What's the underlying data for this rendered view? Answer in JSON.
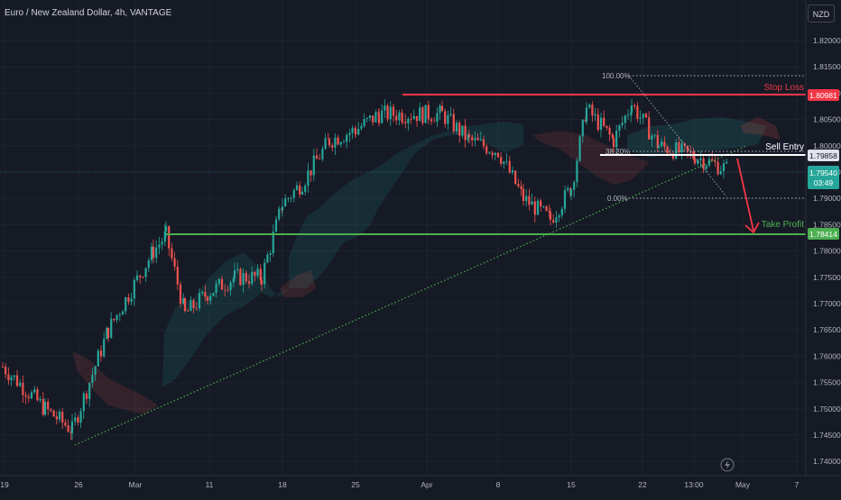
{
  "header": {
    "title": "Euro / New Zealand Dollar, 4h, VANTAGE",
    "currency": "NZD"
  },
  "price_axis": {
    "ticks": [
      "1.82000",
      "1.81500",
      "1.81000",
      "1.80500",
      "1.80000",
      "1.79500",
      "1.79000",
      "1.78500",
      "1.78000",
      "1.77500",
      "1.77000",
      "1.76500",
      "1.76000",
      "1.75500",
      "1.75000",
      "1.74500",
      "1.74000"
    ],
    "badges": {
      "stop_loss": "1.80981",
      "sell_entry": "1.79858",
      "current": "1.79540",
      "countdown": "03:49",
      "take_profit": "1.78414"
    }
  },
  "time_axis": {
    "ticks": [
      "19",
      "26",
      "Mar",
      "11",
      "18",
      "25",
      "Apr",
      "8",
      "15",
      "22",
      "13:00",
      "May",
      "7"
    ]
  },
  "annotations": {
    "stop_loss": "Stop Loss",
    "sell_entry": "Sell Entry",
    "take_profit": "Take Profit",
    "fib_100": "100.00%",
    "fib_38": "38.20%",
    "fib_0": "0.00%"
  },
  "colors": {
    "up": "#26a69a",
    "down": "#ef5350",
    "stop": "#f23645",
    "tp": "#4caf50",
    "entry": "#ffffff",
    "bg": "#161a25"
  },
  "chart_data": {
    "type": "candlestick",
    "ylim": [
      1.74,
      1.82
    ],
    "levels": {
      "stop_loss": 1.80981,
      "sell_entry": 1.79858,
      "take_profit": 1.78414,
      "current": 1.7954
    },
    "close_anchors": [
      [
        "Feb 19",
        1.758
      ],
      [
        "Feb 23",
        1.75
      ],
      [
        "Feb 27",
        1.746
      ],
      [
        "Mar 1",
        1.765
      ],
      [
        "Mar 4",
        1.78
      ],
      [
        "Mar 6",
        1.783
      ],
      [
        "Mar 8",
        1.768
      ],
      [
        "Mar 11",
        1.772
      ],
      [
        "Mar 13",
        1.775
      ],
      [
        "Mar 15",
        1.775
      ],
      [
        "Mar 18",
        1.789
      ],
      [
        "Mar 20",
        1.793
      ],
      [
        "Mar 22",
        1.801
      ],
      [
        "Mar 25",
        1.803
      ],
      [
        "Mar 27",
        1.806
      ],
      [
        "Mar 29",
        1.806
      ],
      [
        "Apr 2",
        1.806
      ],
      [
        "Apr 5",
        1.801
      ],
      [
        "Apr 8",
        1.799
      ],
      [
        "Apr 10",
        1.79
      ],
      [
        "Apr 12",
        1.786
      ],
      [
        "Apr 15",
        1.792
      ],
      [
        "Apr 17",
        1.807
      ],
      [
        "Apr 19",
        1.801
      ],
      [
        "Apr 22",
        1.808
      ],
      [
        "Apr 24",
        1.8
      ],
      [
        "Apr 26",
        1.798
      ],
      [
        "Apr 29",
        1.7954
      ]
    ],
    "fibonacci": [
      [
        "100.00%",
        1.8095
      ],
      [
        "38.20%",
        1.7981
      ],
      [
        "0.00%",
        1.7906
      ]
    ]
  }
}
